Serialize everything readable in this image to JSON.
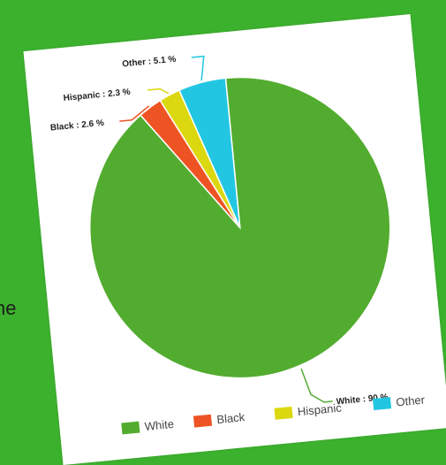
{
  "background_text": "he",
  "chart_data": {
    "type": "pie",
    "categories": [
      "White",
      "Black",
      "Hispanic",
      "Other"
    ],
    "values": [
      90,
      2.6,
      2.3,
      5.1
    ],
    "colors": [
      "#52ac2f",
      "#ee5423",
      "#dcd80f",
      "#22c6e2"
    ],
    "data_labels": [
      "White : 90 %",
      "Black : 2.6 %",
      "Hispanic : 2.3 %",
      "Other : 5.1 %"
    ],
    "legend": [
      "White",
      "Black",
      "Hispanic",
      "Other"
    ],
    "legend_placement": "bottom"
  }
}
